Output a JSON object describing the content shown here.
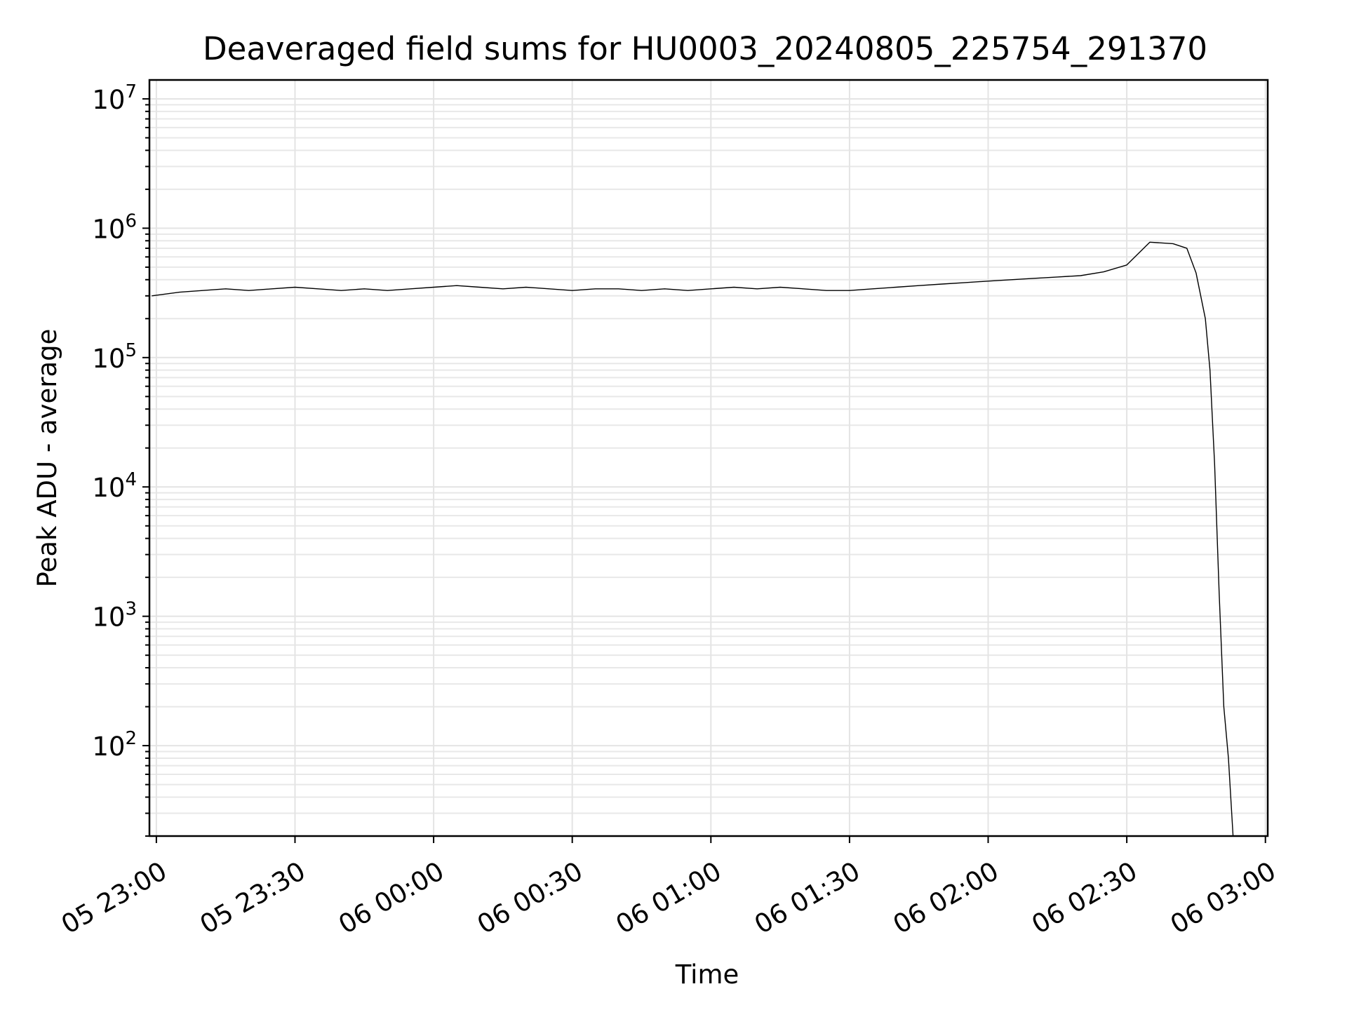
{
  "chart_data": {
    "type": "line",
    "title": "Deaveraged field sums for HU0003_20240805_225754_291370",
    "xlabel": "Time",
    "ylabel": "Peak ADU - average",
    "y_scale": "log",
    "ylim": [
      20,
      14000000
    ],
    "xlim": [
      "2024-08-05 22:58:30",
      "2024-08-06 03:00:30"
    ],
    "grid": "both (major and minor)",
    "line_color": "#000000",
    "x_ticks": [
      {
        "t": "2024-08-05 23:00",
        "label": "05 23:00"
      },
      {
        "t": "2024-08-05 23:30",
        "label": "05 23:30"
      },
      {
        "t": "2024-08-06 00:00",
        "label": "06 00:00"
      },
      {
        "t": "2024-08-06 00:30",
        "label": "06 00:30"
      },
      {
        "t": "2024-08-06 01:00",
        "label": "06 01:00"
      },
      {
        "t": "2024-08-06 01:30",
        "label": "06 01:30"
      },
      {
        "t": "2024-08-06 02:00",
        "label": "06 02:00"
      },
      {
        "t": "2024-08-06 02:30",
        "label": "06 02:30"
      },
      {
        "t": "2024-08-06 03:00",
        "label": "06 03:00"
      }
    ],
    "y_ticks": [
      {
        "value": 100,
        "base": "10",
        "exp": "2"
      },
      {
        "value": 1000,
        "base": "10",
        "exp": "3"
      },
      {
        "value": 10000,
        "base": "10",
        "exp": "4"
      },
      {
        "value": 100000,
        "base": "10",
        "exp": "5"
      },
      {
        "value": 1000000,
        "base": "10",
        "exp": "6"
      },
      {
        "value": 10000000,
        "base": "10",
        "exp": "7"
      }
    ],
    "series": [
      {
        "x": [
          "2024-08-05 22:59",
          "2024-08-05 23:05",
          "2024-08-05 23:10",
          "2024-08-05 23:15",
          "2024-08-05 23:20",
          "2024-08-05 23:25",
          "2024-08-05 23:30",
          "2024-08-05 23:35",
          "2024-08-05 23:40",
          "2024-08-05 23:45",
          "2024-08-05 23:50",
          "2024-08-05 23:55",
          "2024-08-06 00:00",
          "2024-08-06 00:05",
          "2024-08-06 00:10",
          "2024-08-06 00:15",
          "2024-08-06 00:20",
          "2024-08-06 00:25",
          "2024-08-06 00:30",
          "2024-08-06 00:35",
          "2024-08-06 00:40",
          "2024-08-06 00:45",
          "2024-08-06 00:50",
          "2024-08-06 00:55",
          "2024-08-06 01:00",
          "2024-08-06 01:05",
          "2024-08-06 01:10",
          "2024-08-06 01:15",
          "2024-08-06 01:20",
          "2024-08-06 01:25",
          "2024-08-06 01:30",
          "2024-08-06 01:35",
          "2024-08-06 01:40",
          "2024-08-06 01:45",
          "2024-08-06 01:50",
          "2024-08-06 01:55",
          "2024-08-06 02:00",
          "2024-08-06 02:05",
          "2024-08-06 02:10",
          "2024-08-06 02:15",
          "2024-08-06 02:20",
          "2024-08-06 02:25",
          "2024-08-06 02:30",
          "2024-08-06 02:35",
          "2024-08-06 02:40",
          "2024-08-06 02:43",
          "2024-08-06 02:45",
          "2024-08-06 02:47",
          "2024-08-06 02:48",
          "2024-08-06 02:49",
          "2024-08-06 02:50",
          "2024-08-06 02:51",
          "2024-08-06 02:52",
          "2024-08-06 02:53"
        ],
        "y": [
          300000,
          320000,
          330000,
          340000,
          330000,
          340000,
          350000,
          340000,
          330000,
          340000,
          330000,
          340000,
          350000,
          360000,
          350000,
          340000,
          350000,
          340000,
          330000,
          340000,
          340000,
          330000,
          340000,
          330000,
          340000,
          350000,
          340000,
          350000,
          340000,
          330000,
          330000,
          340000,
          350000,
          360000,
          370000,
          380000,
          390000,
          400000,
          410000,
          420000,
          430000,
          460000,
          520000,
          780000,
          760000,
          700000,
          450000,
          200000,
          80000,
          15000,
          1500,
          200,
          80,
          20
        ]
      }
    ]
  }
}
